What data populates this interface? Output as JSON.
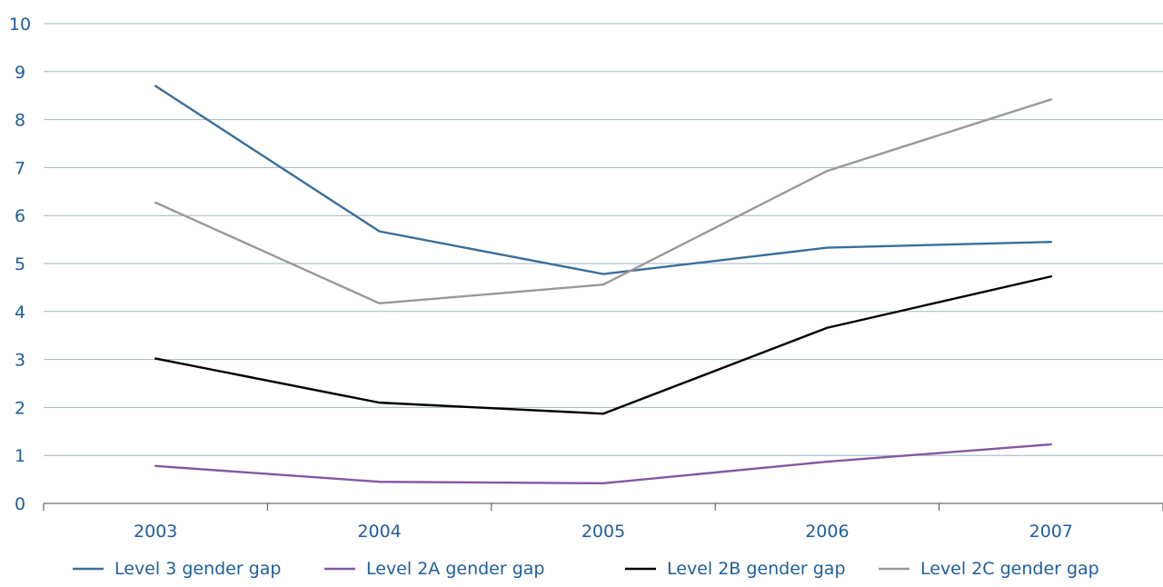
{
  "chart_data": {
    "type": "line",
    "categories": [
      "2003",
      "2004",
      "2005",
      "2006",
      "2007"
    ],
    "ylim": [
      0,
      10
    ],
    "yticks": [
      0,
      1,
      2,
      3,
      4,
      5,
      6,
      7,
      8,
      9,
      10
    ],
    "grid": true,
    "legend_position": "bottom",
    "series": [
      {
        "name": "Level 3 gender gap",
        "color": "#3a6f9b",
        "values": [
          8.7,
          5.67,
          4.78,
          5.33,
          5.45
        ]
      },
      {
        "name": "Level 2A gender gap",
        "color": "#8358a0",
        "values": [
          0.78,
          0.45,
          0.42,
          0.87,
          1.23
        ]
      },
      {
        "name": "Level 2B gender gap",
        "color": "#000000",
        "values": [
          3.02,
          2.1,
          1.87,
          3.66,
          4.73
        ]
      },
      {
        "name": "Level 2C gender gap",
        "color": "#999999",
        "values": [
          6.27,
          4.17,
          4.56,
          6.93,
          8.42
        ]
      }
    ],
    "colors": {
      "axis_text": "#1f5e9c",
      "grid": "#9fb4c7",
      "axis_line": "#4a4a4a"
    }
  }
}
